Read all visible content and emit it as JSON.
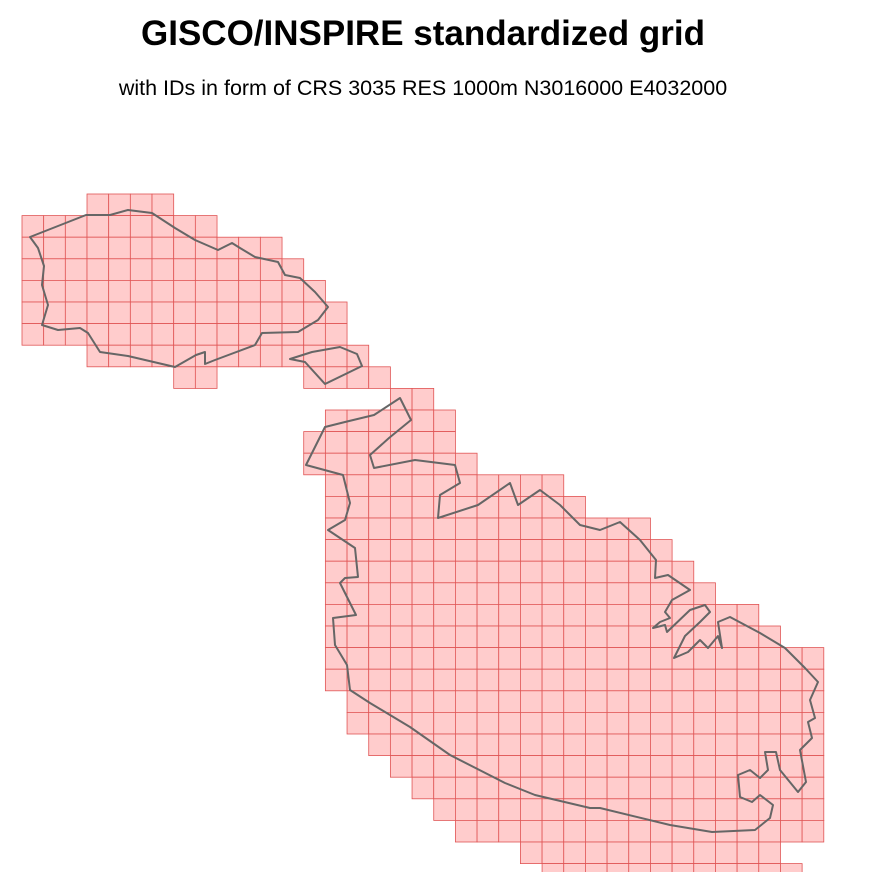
{
  "title": "GISCO/INSPIRE standardized grid",
  "subtitle": "with IDs in form of CRS 3035 RES 1000m N3016000 E4032000",
  "style": {
    "cell_fill": "#ffcccc",
    "cell_stroke": "#e05555",
    "coastline_stroke": "#666666"
  },
  "map_content": {
    "islands": [
      "Gozo",
      "Comino",
      "Malta"
    ],
    "grid_resolution": "1000m",
    "crs": "3035"
  }
}
